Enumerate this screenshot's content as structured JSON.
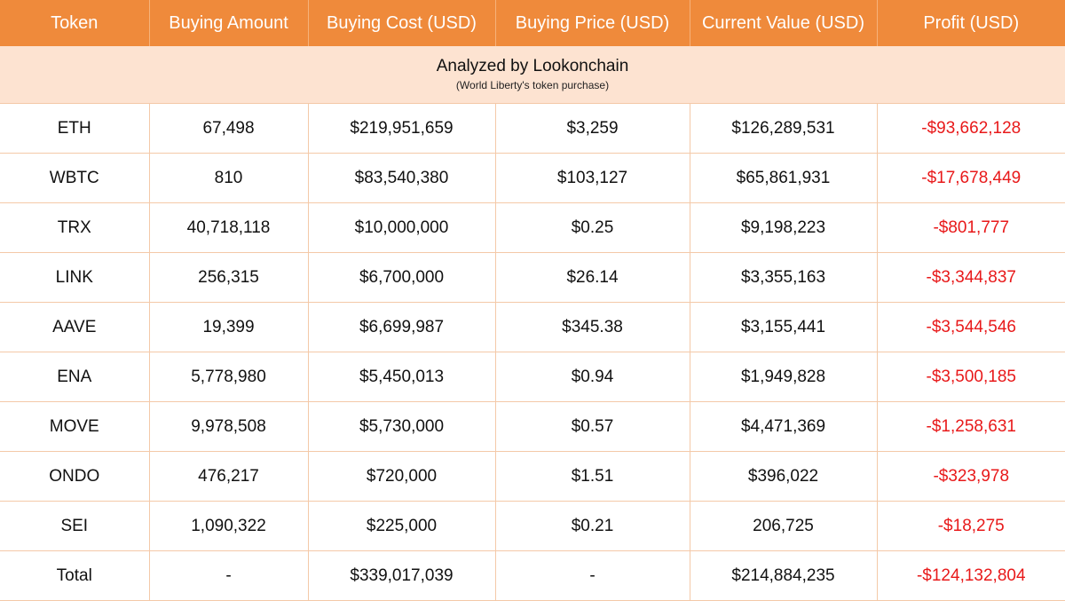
{
  "columns": [
    "Token",
    "Buying Amount",
    "Buying Cost (USD)",
    "Buying Price (USD)",
    "Current Value (USD)",
    "Profit (USD)"
  ],
  "banner": {
    "title": "Analyzed by Lookonchain",
    "subtitle": "(World Liberty's token purchase)"
  },
  "rows": [
    [
      "ETH",
      "67,498",
      "$219,951,659",
      "$3,259",
      "$126,289,531",
      "-$93,662,128"
    ],
    [
      "WBTC",
      "810",
      "$83,540,380",
      "$103,127",
      "$65,861,931",
      "-$17,678,449"
    ],
    [
      "TRX",
      "40,718,118",
      "$10,000,000",
      "$0.25",
      "$9,198,223",
      "-$801,777"
    ],
    [
      "LINK",
      "256,315",
      "$6,700,000",
      "$26.14",
      "$3,355,163",
      "-$3,344,837"
    ],
    [
      "AAVE",
      "19,399",
      "$6,699,987",
      "$345.38",
      "$3,155,441",
      "-$3,544,546"
    ],
    [
      "ENA",
      "5,778,980",
      "$5,450,013",
      "$0.94",
      "$1,949,828",
      "-$3,500,185"
    ],
    [
      "MOVE",
      "9,978,508",
      "$5,730,000",
      "$0.57",
      "$4,471,369",
      "-$1,258,631"
    ],
    [
      "ONDO",
      "476,217",
      "$720,000",
      "$1.51",
      "$396,022",
      "-$323,978"
    ],
    [
      "SEI",
      "1,090,322",
      "$225,000",
      "$0.21",
      "206,725",
      "-$18,275"
    ],
    [
      "Total",
      "-",
      "$339,017,039",
      "-",
      "$214,884,235",
      "-$124,132,804"
    ]
  ],
  "colors": {
    "header_bg": "#ef8a3b",
    "banner_bg": "#fde3d1",
    "loss": "#e8191a"
  }
}
